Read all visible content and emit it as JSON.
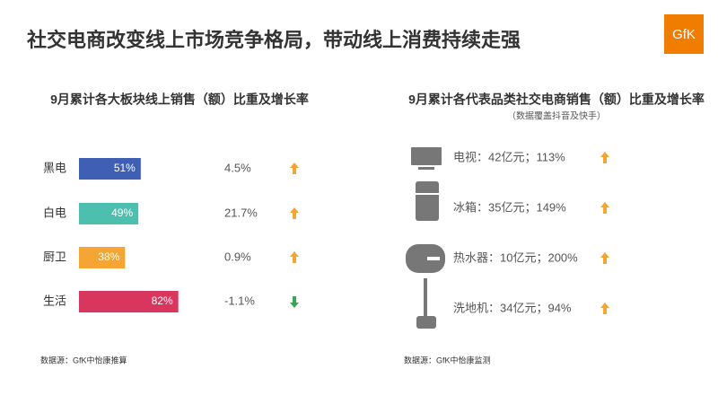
{
  "title": "社交电商改变线上市场竞争格局，带动线上消费持续走强",
  "logo": "GfK",
  "chart_data": {
    "type": "bar",
    "title": "9月累计各大板块线上销售（额）比重及增长率",
    "categories": [
      "黑电",
      "白电",
      "厨卫",
      "生活"
    ],
    "values": [
      51,
      49,
      38,
      82
    ],
    "value_labels": [
      "51%",
      "49%",
      "38%",
      "82%"
    ],
    "colors": [
      "#3f5fb5",
      "#4dbfae",
      "#f5a533",
      "#d8365f"
    ],
    "growth": {
      "values": [
        4.5,
        21.7,
        0.9,
        -1.1
      ],
      "value_labels": [
        "4.5%",
        "21.7%",
        "0.9%",
        "-1.1%"
      ],
      "up_color": "#f5a533",
      "down_color": "#3aa655"
    },
    "source": "数据源：GfK中怡康推算"
  },
  "panel": {
    "title": "9月累计各代表品类社交电商销售（额）比重及增长率",
    "subtitle": "（数据覆盖抖音及快手）",
    "items": [
      {
        "label": "电视：42亿元；113%"
      },
      {
        "label": "冰箱：35亿元；149%"
      },
      {
        "label": "热水器：10亿元；200%"
      },
      {
        "label": "洗地机：34亿元；94%"
      }
    ],
    "source": "数据源：GfK中怡康监测"
  }
}
